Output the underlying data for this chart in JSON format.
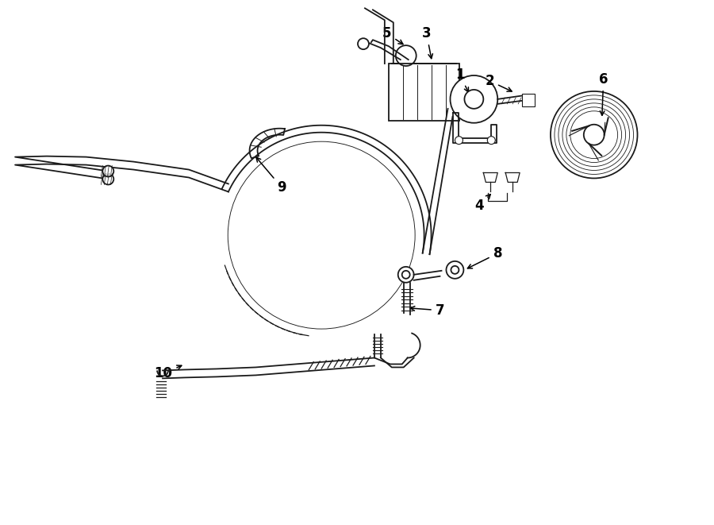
{
  "bg_color": "#ffffff",
  "line_color": "#1a1a1a",
  "label_color": "#000000",
  "fig_width": 9.0,
  "fig_height": 6.61,
  "dpi": 100,
  "xlim": [
    0,
    9.0
  ],
  "ylim": [
    0,
    6.61
  ]
}
